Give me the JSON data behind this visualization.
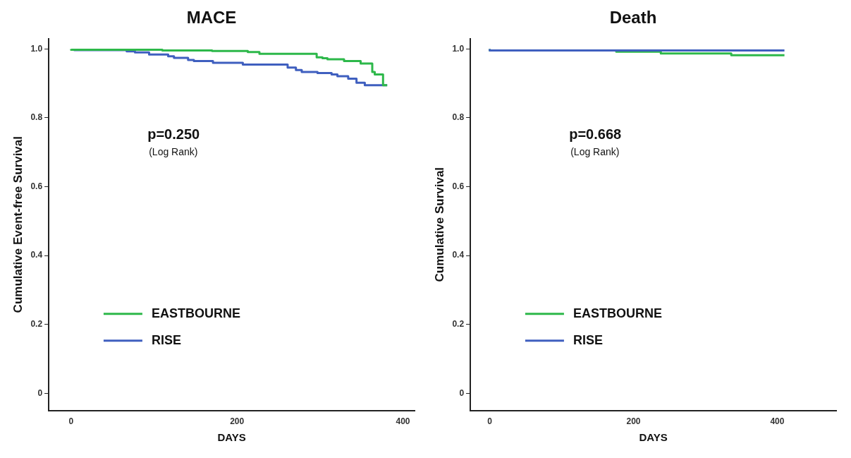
{
  "chart_data": [
    {
      "type": "step",
      "title": "MACE",
      "xlabel": "DAYS",
      "ylabel": "Cumulative Event-free Survival",
      "annotations": [
        "p=0.250",
        "(Log Rank)"
      ],
      "xlim": [
        -27,
        414
      ],
      "ylim": [
        -0.05,
        1.03
      ],
      "xticks": [
        0,
        200,
        400
      ],
      "yticks": [
        0,
        0.2,
        0.4,
        0.6,
        0.8,
        {
          "value": 1,
          "label": "1.0"
        }
      ],
      "legend": "bottom left",
      "grid": false,
      "series": [
        {
          "name": "EASTBOURNE",
          "color": "#2db84a",
          "x": [
            0,
            110,
            170,
            213,
            227,
            296,
            303,
            309,
            329,
            349,
            363,
            366,
            371,
            376,
            381
          ],
          "values": [
            1.0,
            0.998,
            0.996,
            0.994,
            0.991,
            0.986,
            0.976,
            0.973,
            0.97,
            0.965,
            0.958,
            0.933,
            0.926,
            0.926,
            0.895
          ]
        },
        {
          "name": "RISE",
          "color": "#3f5fbf",
          "x": [
            4,
            67,
            77,
            94,
            117,
            124,
            141,
            148,
            171,
            207,
            261,
            271,
            278,
            297,
            314,
            321,
            334,
            344,
            354,
            374,
            381
          ],
          "values": [
            0.998,
            0.997,
            0.993,
            0.99,
            0.984,
            0.979,
            0.974,
            0.968,
            0.965,
            0.96,
            0.955,
            0.946,
            0.939,
            0.933,
            0.93,
            0.926,
            0.921,
            0.914,
            0.902,
            0.895,
            0.895
          ]
        }
      ]
    },
    {
      "type": "step",
      "title": "Death",
      "xlabel": "DAYS",
      "ylabel": "Cumulative Survival",
      "annotations": [
        "p=0.668",
        "(Log Rank)"
      ],
      "xlim": [
        -27,
        482
      ],
      "ylim": [
        -0.05,
        1.03
      ],
      "xticks": [
        0,
        200,
        400
      ],
      "yticks": [
        0,
        0.2,
        0.4,
        0.6,
        0.8,
        {
          "value": 1,
          "label": "1.0"
        }
      ],
      "legend": "bottom left",
      "grid": false,
      "series": [
        {
          "name": "RISE",
          "color": "#3f5fbf",
          "x": [
            0,
            74,
            410
          ],
          "values": [
            1.0,
            0.996,
            0.996
          ]
        },
        {
          "name": "EASTBOURNE",
          "color": "#2db84a",
          "x": [
            0,
            176,
            238,
            336,
            385,
            410
          ],
          "values": [
            1.0,
            0.996,
            0.992,
            0.987,
            0.982,
            0.982
          ]
        }
      ]
    }
  ]
}
